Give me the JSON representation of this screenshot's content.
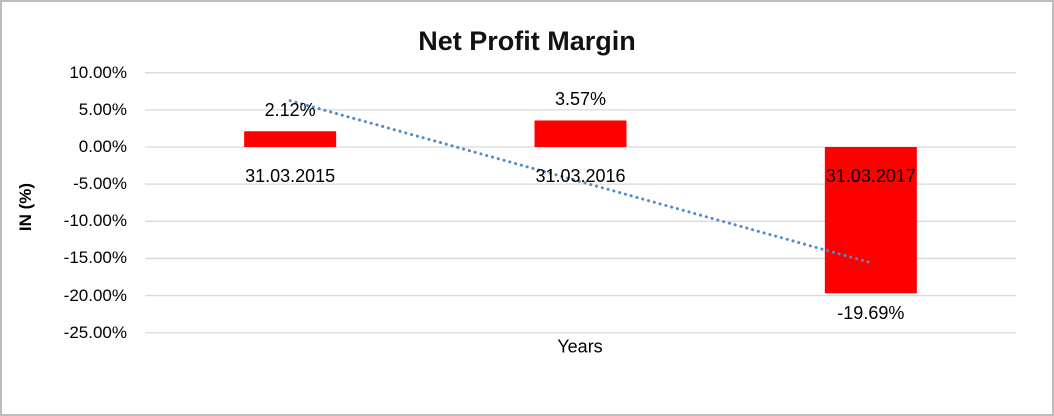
{
  "chart": {
    "title": "Net Profit Margin",
    "y_axis_title": "IN (%)",
    "x_axis_title": "Years"
  },
  "chart_data": {
    "type": "bar",
    "title": "Net Profit Margin",
    "xlabel": "Years",
    "ylabel": "IN (%)",
    "categories": [
      "31.03.2015",
      "31.03.2016",
      "31.03.2017"
    ],
    "values": [
      2.12,
      3.57,
      -19.69
    ],
    "data_labels": [
      "2.12%",
      "3.57%",
      "-19.69%"
    ],
    "y_ticks": [
      "10.00%",
      "5.00%",
      "0.00%",
      "-5.00%",
      "-10.00%",
      "-15.00%",
      "-20.00%",
      "-25.00%"
    ],
    "ylim": [
      -25,
      10
    ],
    "y_step": 5,
    "grid": true,
    "legend": false,
    "bar_color": "#FF0000",
    "gridline_color": "#D9D9D9",
    "trendline": {
      "type": "linear",
      "style": "dotted",
      "color": "#4E8BC9"
    }
  }
}
